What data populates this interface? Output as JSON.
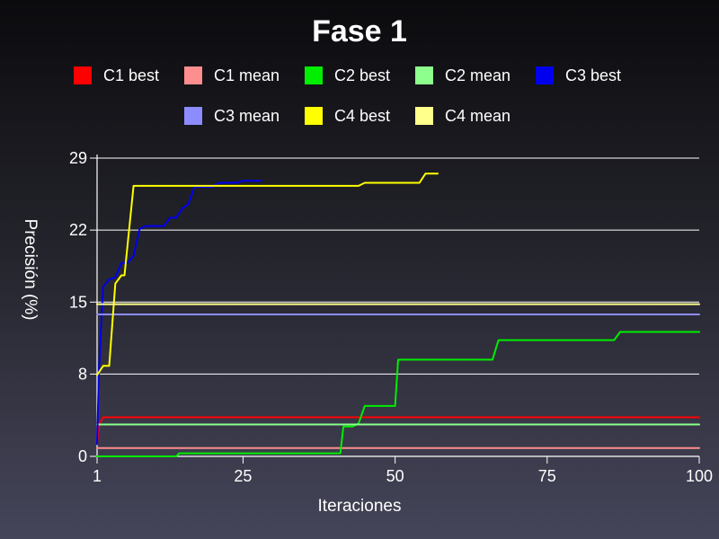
{
  "chart_data": {
    "type": "line",
    "title": "Fase 1",
    "xlabel": "Iteraciones",
    "ylabel": "Precisión (%)",
    "xlim": [
      1,
      100
    ],
    "ylim": [
      0,
      29
    ],
    "xticks": [
      1,
      25,
      50,
      75,
      100
    ],
    "yticks": [
      0,
      8,
      15,
      22,
      29
    ],
    "grid": "horizontal",
    "legend_position": "top",
    "series": [
      {
        "name": "C1 best",
        "color": "#ff0000",
        "points": [
          [
            1,
            1.2
          ],
          [
            1.4,
            3.2
          ],
          [
            2,
            3.8
          ],
          [
            100,
            3.8
          ]
        ]
      },
      {
        "name": "C1 mean",
        "color": "#ff8e8e",
        "points": [
          [
            1,
            0.8
          ],
          [
            100,
            0.8
          ]
        ]
      },
      {
        "name": "C2 best",
        "color": "#00ee00",
        "points": [
          [
            1,
            0
          ],
          [
            14,
            0
          ],
          [
            14.5,
            0.3
          ],
          [
            41,
            0.3
          ],
          [
            41.5,
            2.9
          ],
          [
            43,
            2.9
          ],
          [
            44,
            3.2
          ],
          [
            45,
            4.9
          ],
          [
            50,
            4.9
          ],
          [
            50.5,
            9.4
          ],
          [
            66,
            9.4
          ],
          [
            67,
            11.3
          ],
          [
            86,
            11.3
          ],
          [
            87,
            12.1
          ],
          [
            100,
            12.1
          ]
        ]
      },
      {
        "name": "C2 mean",
        "color": "#8cff8c",
        "points": [
          [
            1,
            3.1
          ],
          [
            100,
            3.1
          ]
        ]
      },
      {
        "name": "C3 best",
        "color": "#0000ee",
        "points": [
          [
            1,
            1.2
          ],
          [
            1.3,
            8.2
          ],
          [
            2,
            16.5
          ],
          [
            3,
            17.2
          ],
          [
            4,
            17.4
          ],
          [
            5,
            18.8
          ],
          [
            6,
            18.8
          ],
          [
            7,
            19.5
          ],
          [
            8,
            22.1
          ],
          [
            9,
            22.4
          ],
          [
            12,
            22.4
          ],
          [
            13,
            23.2
          ],
          [
            14,
            23.2
          ],
          [
            15,
            24.1
          ],
          [
            16,
            24.5
          ],
          [
            17,
            26.2
          ],
          [
            20,
            26.2
          ],
          [
            21,
            26.6
          ],
          [
            24,
            26.6
          ],
          [
            25,
            26.8
          ],
          [
            28,
            26.8
          ]
        ]
      },
      {
        "name": "C3 mean",
        "color": "#8c8cff",
        "points": [
          [
            1,
            13.8
          ],
          [
            100,
            13.8
          ]
        ]
      },
      {
        "name": "C4 best",
        "color": "#ffff00",
        "points": [
          [
            1,
            7.9
          ],
          [
            2,
            8.8
          ],
          [
            3,
            8.8
          ],
          [
            4,
            16.8
          ],
          [
            5,
            17.6
          ],
          [
            5.5,
            17.6
          ],
          [
            7,
            26.3
          ],
          [
            44,
            26.3
          ],
          [
            45,
            26.6
          ],
          [
            54,
            26.6
          ],
          [
            55,
            27.5
          ],
          [
            57,
            27.5
          ]
        ]
      },
      {
        "name": "C4 mean",
        "color": "#ffff8c",
        "points": [
          [
            1,
            14.8
          ],
          [
            100,
            14.8
          ]
        ]
      }
    ]
  }
}
